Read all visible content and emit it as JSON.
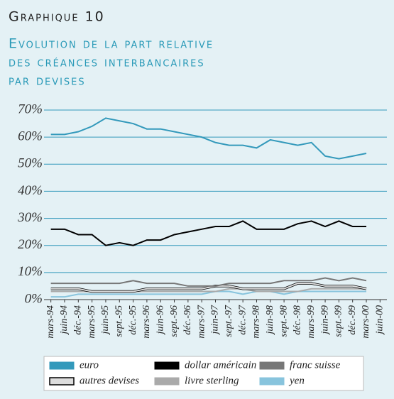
{
  "chart_data": {
    "type": "line",
    "title": "Graphique 10",
    "subtitle": [
      "Evolution de la part relative",
      "des créances interbancaires",
      "par devises"
    ],
    "categories": [
      "mars-94",
      "juin-94",
      "déc.-94",
      "mars-95",
      "juin-95",
      "sept.-95",
      "déc.-95",
      "mars-96",
      "juin-96",
      "sept.-96",
      "déc.-96",
      "mars-97",
      "juin-97",
      "sept.-97",
      "déc.-97",
      "mars-98",
      "juin-98",
      "sept.-98",
      "déc.-98",
      "mars-99",
      "juin-99",
      "sept.-99",
      "déc.-99",
      "mars-00",
      "juin-00"
    ],
    "ylim": [
      0,
      70
    ],
    "yticks": [
      {
        "value": 0,
        "label": "0%"
      },
      {
        "value": 10,
        "label": "10%"
      },
      {
        "value": 20,
        "label": "20%"
      },
      {
        "value": 30,
        "label": "30%"
      },
      {
        "value": 40,
        "label": "40%"
      },
      {
        "value": 50,
        "label": "50%"
      },
      {
        "value": 60,
        "label": "60%"
      },
      {
        "value": 70,
        "label": "70%"
      }
    ],
    "grid": true,
    "series": [
      {
        "name": "euro",
        "color": "#3399bb",
        "values": [
          61,
          61,
          62,
          64,
          67,
          66,
          65,
          63,
          63,
          62,
          61,
          60,
          58,
          57,
          57,
          56,
          59,
          58,
          57,
          58,
          53,
          52,
          53,
          54,
          null
        ]
      },
      {
        "name": "dollar américain",
        "color": "#000000",
        "values": [
          26,
          26,
          24,
          24,
          20,
          21,
          20,
          22,
          22,
          24,
          25,
          26,
          27,
          27,
          29,
          26,
          26,
          26,
          28,
          29,
          27,
          29,
          27,
          27,
          null
        ]
      },
      {
        "name": "franc suisse",
        "color": "#777777",
        "values": [
          6,
          6,
          6,
          6,
          6,
          6,
          7,
          6,
          6,
          6,
          5,
          5,
          5,
          6,
          6,
          6,
          6,
          7,
          7,
          7,
          8,
          7,
          8,
          7,
          null
        ]
      },
      {
        "name": "autres devises",
        "color": "#dddddd",
        "values": [
          4,
          4,
          4,
          3,
          3,
          3,
          3,
          4,
          4,
          4,
          4,
          4,
          5,
          5,
          4,
          4,
          4,
          4,
          6,
          6,
          5,
          5,
          5,
          4,
          null
        ]
      },
      {
        "name": "livre sterling",
        "color": "#aaaaaa",
        "values": [
          3,
          3,
          3,
          3,
          3,
          3,
          3,
          3,
          3,
          3,
          3,
          3,
          3,
          4,
          4,
          3,
          3,
          3,
          3,
          4,
          4,
          4,
          4,
          4,
          null
        ]
      },
      {
        "name": "yen",
        "color": "#88c4dd",
        "values": [
          1,
          1,
          2,
          2,
          2,
          2,
          2,
          2,
          2,
          2,
          2,
          2,
          3,
          3,
          2,
          3,
          3,
          2,
          3,
          3,
          3,
          3,
          3,
          3,
          null
        ]
      }
    ]
  }
}
